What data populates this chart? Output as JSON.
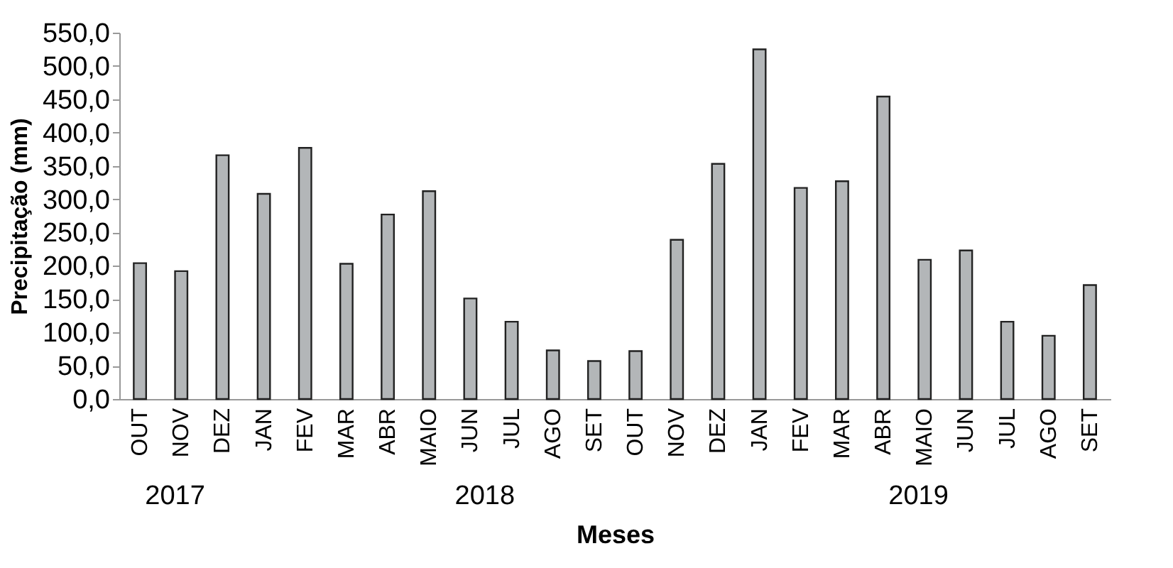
{
  "chart_data": {
    "type": "bar",
    "categories": [
      "OUT",
      "NOV",
      "DEZ",
      "JAN",
      "FEV",
      "MAR",
      "ABR",
      "MAIO",
      "JUN",
      "JUL",
      "AGO",
      "SET",
      "OUT",
      "NOV",
      "DEZ",
      "JAN",
      "FEV",
      "MAR",
      "ABR",
      "MAIO",
      "JUN",
      "JUL",
      "AGO",
      "SET"
    ],
    "values": [
      204,
      192,
      366,
      308,
      377,
      203,
      277,
      312,
      151,
      116,
      73,
      57,
      72,
      239,
      353,
      525,
      317,
      327,
      454,
      209,
      223,
      116,
      95,
      171
    ],
    "color": "#b3b6b8",
    "xlabel": "Meses",
    "ylabel": "Precipitação (mm)",
    "ylim": [
      0,
      550
    ],
    "yticks": [
      {
        "value": 0,
        "label": "0,0"
      },
      {
        "value": 50,
        "label": "50,0"
      },
      {
        "value": 100,
        "label": "100,0"
      },
      {
        "value": 150,
        "label": "150,0"
      },
      {
        "value": 200,
        "label": "200,0"
      },
      {
        "value": 250,
        "label": "250,0"
      },
      {
        "value": 300,
        "label": "300,0"
      },
      {
        "value": 350,
        "label": "350,0"
      },
      {
        "value": 400,
        "label": "400,0"
      },
      {
        "value": 450,
        "label": "450,0"
      },
      {
        "value": 500,
        "label": "500,0"
      },
      {
        "value": 550,
        "label": "550,0"
      }
    ],
    "grid": false,
    "annotations": [
      "2017",
      "2018",
      "2019"
    ]
  }
}
